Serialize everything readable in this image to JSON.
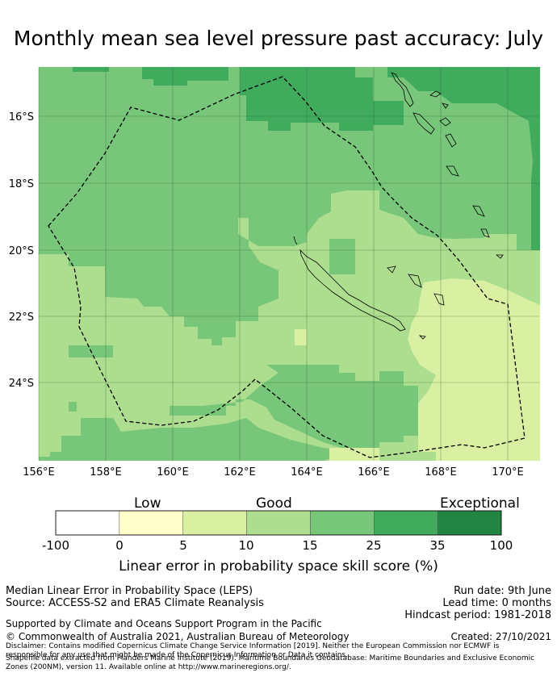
{
  "title": "Monthly mean sea level pressure past accuracy: July",
  "map": {
    "lat_labels": [
      "16°S",
      "18°S",
      "20°S",
      "22°S",
      "24°S"
    ],
    "lon_labels": [
      "156°E",
      "158°E",
      "160°E",
      "162°E",
      "164°E",
      "166°E",
      "168°E",
      "170°E"
    ],
    "extent": {
      "lon_min": 156,
      "lon_max": 171,
      "lat_min": -26.3,
      "lat_max": -14.5
    },
    "boundary_style": "dashed"
  },
  "legend": {
    "categories": [
      "Low",
      "Good",
      "Exceptional"
    ],
    "ticks": [
      "-100",
      "0",
      "5",
      "10",
      "15",
      "25",
      "35",
      "100"
    ],
    "colors": [
      "#ffffff",
      "#ffffcc",
      "#d9f0a3",
      "#addd8e",
      "#78c679",
      "#41ab5d",
      "#238443"
    ],
    "title": "Linear error in probability space skill score (%)"
  },
  "footer": {
    "line1": "Median Linear Error in Probability Space (LEPS)",
    "line2": "Source: ACCESS-S2 and ERA5 Climate Reanalysis",
    "run_date": "Run date: 9th June",
    "lead_time": "Lead time: 0 months",
    "hindcast": "Hindcast period: 1981-2018",
    "support": "Supported by Climate and Oceans Support Program in the Pacific",
    "copyright": "© Commonwealth of Australia 2021, Australian Bureau of Meteorology",
    "created": "Created: 27/10/2021",
    "disclaimer": "Disclaimer: Contains modified Copernicus Climate Change Service Information [2019]. Neither the European Commission nor ECMWF is responsible for any use that might be made of the Copernicus Information or Data it contains.",
    "shapefile": "Shapefile data extracted from Flanders Marine Institute (2019). Maritime Boundaries Geodatabase: Maritime Boundaries and Exclusive Economic Zones (200NM), version 11. Available online at http://www.marineregions.org/."
  }
}
